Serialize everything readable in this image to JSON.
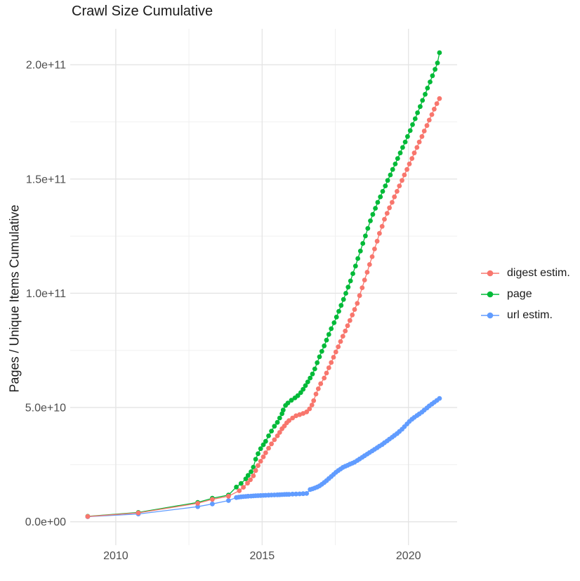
{
  "chart_data": {
    "type": "line",
    "title": "Crawl Size Cumulative",
    "ylabel": "Pages / Unique Items Cumulative",
    "xlabel": "",
    "grid": true,
    "legend_position": "right",
    "background": "#ffffff",
    "grid_major_color": "#e4e4e4",
    "grid_minor_color": "#f0f0f0",
    "xlim": [
      2008.4,
      2021.7
    ],
    "ylim": [
      -9000000000.0,
      216000000000.0
    ],
    "x_ticks": [
      {
        "value": 2010,
        "label": "2010"
      },
      {
        "value": 2015,
        "label": "2015"
      },
      {
        "value": 2020,
        "label": "2020"
      }
    ],
    "y_ticks": [
      {
        "value": 0,
        "label": "0.0e+00"
      },
      {
        "value": 50000000000.0,
        "label": "5.0e+10"
      },
      {
        "value": 100000000000.0,
        "label": "1.0e+11"
      },
      {
        "value": 150000000000.0,
        "label": "1.5e+11"
      },
      {
        "value": 200000000000.0,
        "label": "2.0e+11"
      }
    ],
    "x_minor": [
      2012.5,
      2017.5
    ],
    "y_minor": [
      25000000000.0,
      75000000000.0,
      125000000000.0,
      175000000000.0
    ],
    "series": [
      {
        "name": "digest estim.",
        "color": "#F8766D",
        "points": [
          [
            2009.04,
            2300000000.0
          ],
          [
            2010.77,
            3900000000.0
          ],
          [
            2012.8,
            8100000000.0
          ],
          [
            2013.3,
            9800000000.0
          ],
          [
            2013.85,
            11200000000.0
          ],
          [
            2014.22,
            13600000000.0
          ],
          [
            2014.36,
            15100000000.0
          ],
          [
            2014.5,
            16900000000.0
          ],
          [
            2014.6,
            18400000000.0
          ],
          [
            2014.7,
            20100000000.0
          ],
          [
            2014.78,
            22400000000.0
          ],
          [
            2014.86,
            24600000000.0
          ],
          [
            2014.95,
            26500000000.0
          ],
          [
            2015.04,
            28400000000.0
          ],
          [
            2015.12,
            30200000000.0
          ],
          [
            2015.22,
            32200000000.0
          ],
          [
            2015.32,
            34100000000.0
          ],
          [
            2015.42,
            35900000000.0
          ],
          [
            2015.52,
            37600000000.0
          ],
          [
            2015.6,
            39100000000.0
          ],
          [
            2015.68,
            40700000000.0
          ],
          [
            2015.76,
            41900000000.0
          ],
          [
            2015.84,
            43300000000.0
          ],
          [
            2015.92,
            44300000000.0
          ],
          [
            2016.04,
            45400000000.0
          ],
          [
            2016.16,
            46400000000.0
          ],
          [
            2016.28,
            46900000000.0
          ],
          [
            2016.4,
            47400000000.0
          ],
          [
            2016.52,
            48100000000.0
          ],
          [
            2016.62,
            49400000000.0
          ],
          [
            2016.7,
            51100000000.0
          ],
          [
            2016.76,
            53000000000.0
          ],
          [
            2016.84,
            55900000000.0
          ],
          [
            2016.92,
            58200000000.0
          ],
          [
            2017.0,
            60400000000.0
          ],
          [
            2017.12,
            62900000000.0
          ],
          [
            2017.2,
            65100000000.0
          ],
          [
            2017.28,
            67400000000.0
          ],
          [
            2017.36,
            69700000000.0
          ],
          [
            2017.44,
            72000000000.0
          ],
          [
            2017.52,
            74300000000.0
          ],
          [
            2017.6,
            76600000000.0
          ],
          [
            2017.68,
            78900000000.0
          ],
          [
            2017.76,
            81200000000.0
          ],
          [
            2017.84,
            83500000000.0
          ],
          [
            2017.92,
            85800000000.0
          ],
          [
            2018.0,
            88100000000.0
          ],
          [
            2018.08,
            90500000000.0
          ],
          [
            2018.16,
            92900000000.0
          ],
          [
            2018.25,
            95600000000.0
          ],
          [
            2018.33,
            99000000000.0
          ],
          [
            2018.42,
            102400000000.0
          ],
          [
            2018.5,
            105800000000.0
          ],
          [
            2018.59,
            109200000000.0
          ],
          [
            2018.67,
            112600000000.0
          ],
          [
            2018.76,
            116000000000.0
          ],
          [
            2018.84,
            119400000000.0
          ],
          [
            2018.93,
            122800000000.0
          ],
          [
            2019.01,
            126200000000.0
          ],
          [
            2019.1,
            129300000000.0
          ],
          [
            2019.18,
            132400000000.0
          ],
          [
            2019.27,
            135000000000.0
          ],
          [
            2019.35,
            137400000000.0
          ],
          [
            2019.44,
            139800000000.0
          ],
          [
            2019.52,
            142200000000.0
          ],
          [
            2019.61,
            144600000000.0
          ],
          [
            2019.69,
            147000000000.0
          ],
          [
            2019.78,
            149400000000.0
          ],
          [
            2019.86,
            151800000000.0
          ],
          [
            2019.95,
            154200000000.0
          ],
          [
            2020.03,
            156600000000.0
          ],
          [
            2020.12,
            159000000000.0
          ],
          [
            2020.2,
            161400000000.0
          ],
          [
            2020.29,
            163800000000.0
          ],
          [
            2020.37,
            166200000000.0
          ],
          [
            2020.46,
            168600000000.0
          ],
          [
            2020.54,
            171000000000.0
          ],
          [
            2020.63,
            173400000000.0
          ],
          [
            2020.71,
            175800000000.0
          ],
          [
            2020.8,
            178200000000.0
          ],
          [
            2020.88,
            180600000000.0
          ],
          [
            2020.97,
            183000000000.0
          ],
          [
            2021.06,
            185200000000.0
          ]
        ]
      },
      {
        "name": "page",
        "color": "#00BA38",
        "points": [
          [
            2009.04,
            2400000000.0
          ],
          [
            2010.77,
            4100000000.0
          ],
          [
            2012.8,
            8500000000.0
          ],
          [
            2013.3,
            10300000000.0
          ],
          [
            2013.85,
            11700000000.0
          ],
          [
            2014.12,
            15200000000.0
          ],
          [
            2014.28,
            16800000000.0
          ],
          [
            2014.44,
            18800000000.0
          ],
          [
            2014.52,
            20300000000.0
          ],
          [
            2014.62,
            21900000000.0
          ],
          [
            2014.7,
            23900000000.0
          ],
          [
            2014.78,
            27400000000.0
          ],
          [
            2014.86,
            29800000000.0
          ],
          [
            2014.95,
            32000000000.0
          ],
          [
            2015.04,
            33700000000.0
          ],
          [
            2015.12,
            35200000000.0
          ],
          [
            2015.22,
            37600000000.0
          ],
          [
            2015.32,
            39700000000.0
          ],
          [
            2015.42,
            41800000000.0
          ],
          [
            2015.52,
            43500000000.0
          ],
          [
            2015.6,
            45400000000.0
          ],
          [
            2015.68,
            47300000000.0
          ],
          [
            2015.72,
            48900000000.0
          ],
          [
            2015.8,
            50900000000.0
          ],
          [
            2015.88,
            52000000000.0
          ],
          [
            2016.0,
            53200000000.0
          ],
          [
            2016.12,
            54200000000.0
          ],
          [
            2016.22,
            55200000000.0
          ],
          [
            2016.32,
            56500000000.0
          ],
          [
            2016.4,
            58000000000.0
          ],
          [
            2016.48,
            59600000000.0
          ],
          [
            2016.56,
            61200000000.0
          ],
          [
            2016.64,
            62900000000.0
          ],
          [
            2016.72,
            64700000000.0
          ],
          [
            2016.8,
            66900000000.0
          ],
          [
            2016.88,
            69600000000.0
          ],
          [
            2016.96,
            72200000000.0
          ],
          [
            2017.04,
            74600000000.0
          ],
          [
            2017.12,
            77000000000.0
          ],
          [
            2017.2,
            79500000000.0
          ],
          [
            2017.28,
            82000000000.0
          ],
          [
            2017.36,
            84500000000.0
          ],
          [
            2017.46,
            87100000000.0
          ],
          [
            2017.54,
            89600000000.0
          ],
          [
            2017.62,
            92100000000.0
          ],
          [
            2017.7,
            94700000000.0
          ],
          [
            2017.78,
            97300000000.0
          ],
          [
            2017.86,
            100000000000.0
          ],
          [
            2017.94,
            102700000000.0
          ],
          [
            2018.02,
            105400000000.0
          ],
          [
            2018.1,
            108600000000.0
          ],
          [
            2018.19,
            111900000000.0
          ],
          [
            2018.27,
            115200000000.0
          ],
          [
            2018.36,
            118500000000.0
          ],
          [
            2018.44,
            121800000000.0
          ],
          [
            2018.53,
            125100000000.0
          ],
          [
            2018.61,
            128400000000.0
          ],
          [
            2018.7,
            131700000000.0
          ],
          [
            2018.78,
            134500000000.0
          ],
          [
            2018.87,
            137200000000.0
          ],
          [
            2018.95,
            139800000000.0
          ],
          [
            2019.04,
            142200000000.0
          ],
          [
            2019.12,
            144600000000.0
          ],
          [
            2019.21,
            147000000000.0
          ],
          [
            2019.29,
            149400000000.0
          ],
          [
            2019.38,
            151800000000.0
          ],
          [
            2019.46,
            154200000000.0
          ],
          [
            2019.55,
            156600000000.0
          ],
          [
            2019.63,
            159000000000.0
          ],
          [
            2019.72,
            161400000000.0
          ],
          [
            2019.8,
            163800000000.0
          ],
          [
            2019.89,
            166200000000.0
          ],
          [
            2019.97,
            168600000000.0
          ],
          [
            2020.06,
            171200000000.0
          ],
          [
            2020.14,
            173800000000.0
          ],
          [
            2020.23,
            176400000000.0
          ],
          [
            2020.31,
            179000000000.0
          ],
          [
            2020.4,
            181700000000.0
          ],
          [
            2020.48,
            184400000000.0
          ],
          [
            2020.57,
            187100000000.0
          ],
          [
            2020.65,
            189800000000.0
          ],
          [
            2020.74,
            192500000000.0
          ],
          [
            2020.82,
            195200000000.0
          ],
          [
            2020.91,
            198000000000.0
          ],
          [
            2020.99,
            200800000000.0
          ],
          [
            2021.06,
            205300000000.0
          ]
        ]
      },
      {
        "name": "url estim.",
        "color": "#619CFF",
        "points": [
          [
            2009.04,
            2200000000.0
          ],
          [
            2010.77,
            3400000000.0
          ],
          [
            2012.8,
            6600000000.0
          ],
          [
            2013.3,
            7800000000.0
          ],
          [
            2013.85,
            9300000000.0
          ],
          [
            2014.12,
            10600000000.0
          ],
          [
            2014.2,
            10800000000.0
          ],
          [
            2014.28,
            10900000000.0
          ],
          [
            2014.36,
            11000000000.0
          ],
          [
            2014.44,
            11100000000.0
          ],
          [
            2014.52,
            11200000000.0
          ],
          [
            2014.62,
            11250000000.0
          ],
          [
            2014.7,
            11300000000.0
          ],
          [
            2014.78,
            11400000000.0
          ],
          [
            2014.86,
            11450000000.0
          ],
          [
            2014.95,
            11500000000.0
          ],
          [
            2015.04,
            11550000000.0
          ],
          [
            2015.12,
            11600000000.0
          ],
          [
            2015.22,
            11650000000.0
          ],
          [
            2015.32,
            11700000000.0
          ],
          [
            2015.42,
            11750000000.0
          ],
          [
            2015.52,
            11800000000.0
          ],
          [
            2015.6,
            11850000000.0
          ],
          [
            2015.68,
            11900000000.0
          ],
          [
            2015.76,
            11950000000.0
          ],
          [
            2015.84,
            12000000000.0
          ],
          [
            2015.92,
            12000000000.0
          ],
          [
            2016.04,
            12100000000.0
          ],
          [
            2016.16,
            12150000000.0
          ],
          [
            2016.28,
            12200000000.0
          ],
          [
            2016.4,
            12300000000.0
          ],
          [
            2016.52,
            12400000000.0
          ],
          [
            2016.64,
            14100000000.0
          ],
          [
            2016.72,
            14400000000.0
          ],
          [
            2016.8,
            14800000000.0
          ],
          [
            2016.88,
            15200000000.0
          ],
          [
            2016.96,
            15700000000.0
          ],
          [
            2017.04,
            16400000000.0
          ],
          [
            2017.12,
            17200000000.0
          ],
          [
            2017.2,
            18000000000.0
          ],
          [
            2017.28,
            18900000000.0
          ],
          [
            2017.36,
            19800000000.0
          ],
          [
            2017.44,
            20700000000.0
          ],
          [
            2017.52,
            21600000000.0
          ],
          [
            2017.6,
            22400000000.0
          ],
          [
            2017.68,
            23100000000.0
          ],
          [
            2017.76,
            23800000000.0
          ],
          [
            2017.84,
            24300000000.0
          ],
          [
            2017.92,
            24700000000.0
          ],
          [
            2018.0,
            25200000000.0
          ],
          [
            2018.08,
            25600000000.0
          ],
          [
            2018.16,
            26100000000.0
          ],
          [
            2018.25,
            26800000000.0
          ],
          [
            2018.33,
            27500000000.0
          ],
          [
            2018.42,
            28200000000.0
          ],
          [
            2018.5,
            28900000000.0
          ],
          [
            2018.59,
            29600000000.0
          ],
          [
            2018.67,
            30300000000.0
          ],
          [
            2018.76,
            31000000000.0
          ],
          [
            2018.84,
            31700000000.0
          ],
          [
            2018.93,
            32400000000.0
          ],
          [
            2019.01,
            33100000000.0
          ],
          [
            2019.1,
            33800000000.0
          ],
          [
            2019.18,
            34600000000.0
          ],
          [
            2019.27,
            35400000000.0
          ],
          [
            2019.35,
            36200000000.0
          ],
          [
            2019.44,
            37000000000.0
          ],
          [
            2019.52,
            37800000000.0
          ],
          [
            2019.61,
            38600000000.0
          ],
          [
            2019.69,
            39500000000.0
          ],
          [
            2019.78,
            40500000000.0
          ],
          [
            2019.86,
            41600000000.0
          ],
          [
            2019.95,
            42800000000.0
          ],
          [
            2020.03,
            43900000000.0
          ],
          [
            2020.12,
            44900000000.0
          ],
          [
            2020.2,
            45700000000.0
          ],
          [
            2020.29,
            46500000000.0
          ],
          [
            2020.37,
            47200000000.0
          ],
          [
            2020.46,
            48000000000.0
          ],
          [
            2020.54,
            48900000000.0
          ],
          [
            2020.63,
            49800000000.0
          ],
          [
            2020.71,
            50700000000.0
          ],
          [
            2020.8,
            51500000000.0
          ],
          [
            2020.88,
            52300000000.0
          ],
          [
            2020.97,
            53100000000.0
          ],
          [
            2021.06,
            54000000000.0
          ]
        ]
      }
    ]
  }
}
